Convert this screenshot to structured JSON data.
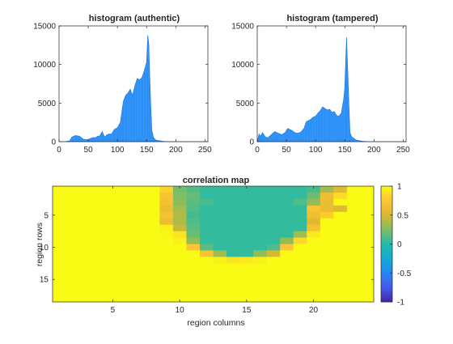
{
  "chart_data": [
    {
      "type": "area",
      "title": "histogram (authentic)",
      "xlabel": "",
      "ylabel": "",
      "xlim": [
        0,
        255
      ],
      "ylim": [
        0,
        15000
      ],
      "xticks": [
        0,
        50,
        100,
        150,
        200,
        250
      ],
      "yticks": [
        0,
        5000,
        10000,
        15000
      ],
      "color": "#3399ff",
      "x": [
        0,
        10,
        18,
        22,
        28,
        35,
        42,
        48,
        52,
        58,
        62,
        66,
        70,
        74,
        78,
        82,
        86,
        90,
        95,
        100,
        105,
        110,
        114,
        118,
        122,
        126,
        130,
        134,
        138,
        142,
        146,
        150,
        152,
        154,
        155,
        157,
        159,
        162,
        166,
        170,
        175,
        180,
        190,
        255
      ],
      "y": [
        0,
        0,
        100,
        600,
        800,
        700,
        300,
        250,
        350,
        550,
        500,
        700,
        750,
        1300,
        600,
        900,
        1000,
        1000,
        1600,
        1800,
        2500,
        5200,
        6000,
        6300,
        6800,
        6000,
        7300,
        8200,
        8000,
        8300,
        9200,
        10300,
        13800,
        12500,
        9500,
        5000,
        1500,
        500,
        200,
        150,
        80,
        20,
        0,
        0
      ]
    },
    {
      "type": "area",
      "title": "histogram (tampered)",
      "xlabel": "",
      "ylabel": "",
      "xlim": [
        0,
        255
      ],
      "ylim": [
        0,
        15000
      ],
      "xticks": [
        0,
        50,
        100,
        150,
        200,
        250
      ],
      "yticks": [
        0,
        5000,
        10000,
        15000
      ],
      "color": "#3399ff",
      "x": [
        0,
        3,
        6,
        9,
        14,
        18,
        24,
        30,
        36,
        42,
        48,
        52,
        58,
        64,
        68,
        74,
        80,
        84,
        90,
        96,
        100,
        104,
        108,
        112,
        116,
        120,
        124,
        128,
        132,
        136,
        140,
        144,
        148,
        150,
        152,
        153,
        155,
        157,
        159,
        162,
        166,
        170,
        180,
        190,
        255
      ],
      "y": [
        0,
        1000,
        700,
        1200,
        600,
        500,
        900,
        1300,
        1100,
        900,
        1200,
        1700,
        1500,
        1200,
        1100,
        1200,
        1700,
        2600,
        2800,
        3200,
        3300,
        3700,
        4000,
        4500,
        4300,
        4100,
        4200,
        3800,
        3900,
        3400,
        3300,
        3700,
        5500,
        7000,
        11500,
        13500,
        9500,
        5000,
        1200,
        600,
        400,
        200,
        60,
        0,
        0
      ]
    },
    {
      "type": "heatmap",
      "title": "correlation map",
      "xlabel": "region columns",
      "ylabel": "region rows",
      "xlim": [
        0.5,
        24.5
      ],
      "ylim": [
        0.5,
        18.5
      ],
      "xticks": [
        5,
        10,
        15,
        20
      ],
      "yticks": [
        5,
        10,
        15
      ],
      "colorbar": {
        "min": -1,
        "max": 1,
        "ticks": [
          1,
          0.5,
          0,
          -0.5,
          -1
        ],
        "colormap": "parula"
      },
      "rows": 18,
      "cols": 24,
      "background_value": 1.0,
      "region_value": 0.04,
      "cells": [
        [
          1,
          9,
          0.82
        ],
        [
          1,
          10,
          0.22
        ],
        [
          1,
          11,
          0.12
        ],
        [
          1,
          20,
          0.1
        ],
        [
          1,
          21,
          0.35
        ],
        [
          1,
          22,
          0.55
        ],
        [
          2,
          9,
          0.72
        ],
        [
          2,
          10,
          0.25
        ],
        [
          2,
          11,
          0.18
        ],
        [
          2,
          20,
          0.2
        ],
        [
          2,
          21,
          0.65
        ],
        [
          2,
          22,
          0.85
        ],
        [
          3,
          9,
          0.68
        ],
        [
          3,
          10,
          0.28
        ],
        [
          3,
          11,
          0.14
        ],
        [
          3,
          12,
          0.1
        ],
        [
          3,
          19,
          0.12
        ],
        [
          3,
          20,
          0.3
        ],
        [
          3,
          21,
          0.62
        ],
        [
          4,
          9,
          0.62
        ],
        [
          4,
          10,
          0.35
        ],
        [
          4,
          11,
          0.12
        ],
        [
          4,
          20,
          0.72
        ],
        [
          4,
          21,
          0.6
        ],
        [
          4,
          22,
          0.55
        ],
        [
          5,
          9,
          0.7
        ],
        [
          5,
          10,
          0.4
        ],
        [
          5,
          11,
          0.08
        ],
        [
          5,
          20,
          0.65
        ],
        [
          5,
          21,
          0.78
        ],
        [
          6,
          9,
          0.62
        ],
        [
          6,
          10,
          0.38
        ],
        [
          6,
          11,
          0.12
        ],
        [
          6,
          20,
          0.55
        ],
        [
          7,
          9,
          0.95
        ],
        [
          7,
          10,
          0.45
        ],
        [
          7,
          11,
          0.15
        ],
        [
          7,
          20,
          0.7
        ],
        [
          8,
          9,
          0.98
        ],
        [
          8,
          10,
          0.9
        ],
        [
          8,
          11,
          0.2
        ],
        [
          8,
          19,
          0.35
        ],
        [
          8,
          20,
          0.92
        ],
        [
          9,
          10,
          0.95
        ],
        [
          9,
          11,
          0.3
        ],
        [
          9,
          18,
          0.3
        ],
        [
          9,
          19,
          0.85
        ],
        [
          10,
          11,
          0.75
        ],
        [
          10,
          12,
          0.15
        ],
        [
          10,
          17,
          0.12
        ],
        [
          10,
          18,
          0.75
        ],
        [
          11,
          12,
          0.72
        ],
        [
          11,
          13,
          0.35
        ],
        [
          11,
          16,
          0.3
        ],
        [
          11,
          17,
          0.5
        ],
        [
          12,
          13,
          0.95
        ],
        [
          12,
          14,
          0.9
        ],
        [
          12,
          15,
          0.92
        ],
        [
          12,
          16,
          0.95
        ]
      ],
      "region": {
        "row_ranges": [
          [
            1,
            10,
            21
          ],
          [
            2,
            10,
            21
          ],
          [
            3,
            10,
            20
          ],
          [
            4,
            10,
            20
          ],
          [
            5,
            10,
            20
          ],
          [
            6,
            10,
            19
          ],
          [
            7,
            10,
            19
          ],
          [
            8,
            10,
            19
          ],
          [
            9,
            11,
            18
          ],
          [
            10,
            11,
            17
          ],
          [
            11,
            12,
            17
          ]
        ]
      }
    }
  ]
}
